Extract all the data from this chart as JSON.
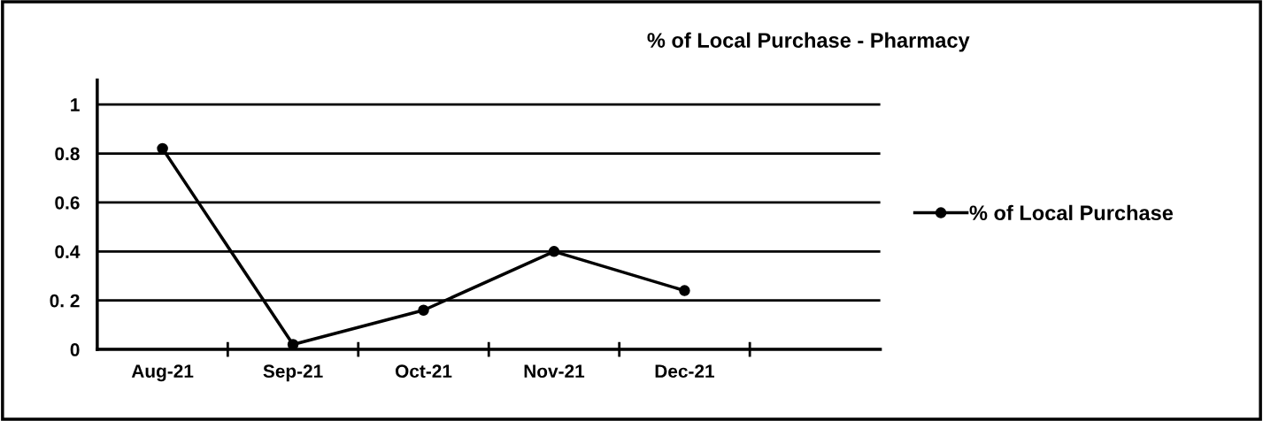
{
  "chart_data": {
    "type": "line",
    "title": "% of Local Purchase - Pharmacy",
    "categories": [
      "Aug-21",
      "Sep-21",
      "Oct-21",
      "Nov-21",
      "Dec-21"
    ],
    "series": [
      {
        "name": "% of Local Purchase",
        "color": "#000000",
        "values": [
          0.82,
          0.02,
          0.16,
          0.4,
          0.24
        ]
      }
    ],
    "ylim": [
      0,
      1.1
    ],
    "yticks": [
      0,
      {
        "value": 0.2,
        "label": "0. 2"
      },
      0.4,
      0.6,
      0.8,
      1
    ],
    "grid": "y",
    "legend": "right",
    "marker": "circle",
    "line_style": "solid"
  }
}
